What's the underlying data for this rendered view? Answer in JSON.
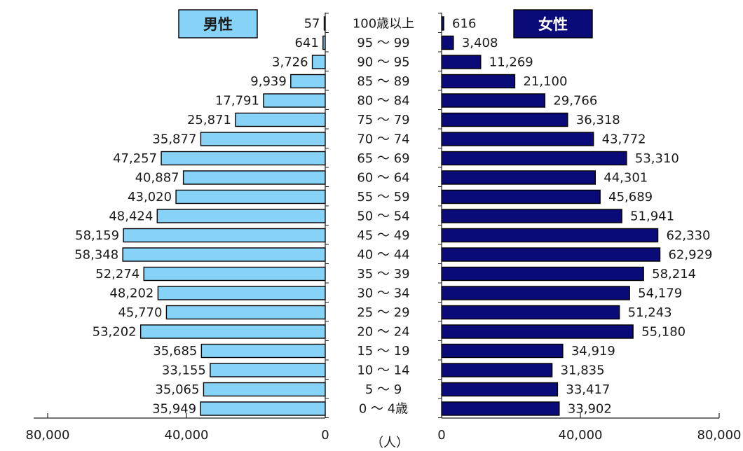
{
  "chart_data": {
    "type": "bar",
    "subtype": "population-pyramid",
    "unit_label": "（人）",
    "categories": [
      "100歳以上",
      "95 ～ 99",
      "90 ～ 95",
      "85 ～ 89",
      "80 ～ 84",
      "75 ～ 79",
      "70 ～ 74",
      "65 ～ 69",
      "60 ～ 64",
      "55 ～ 59",
      "50 ～ 54",
      "45 ～ 49",
      "40 ～ 44",
      "35 ～ 39",
      "30 ～ 34",
      "25 ～ 29",
      "20 ～ 24",
      "15 ～ 19",
      "10 ～ 14",
      "5 ～ 9",
      "0 ～ 4歳"
    ],
    "series": [
      {
        "name": "男性",
        "color": "#87D3F7",
        "values": [
          57,
          641,
          3726,
          9939,
          17791,
          25871,
          35877,
          47257,
          40887,
          43020,
          48424,
          58159,
          58348,
          52274,
          48202,
          45770,
          53202,
          35685,
          33155,
          35065,
          35949
        ],
        "labels": [
          "57",
          "641",
          "3,726",
          "9,939",
          "17,791",
          "25,871",
          "35,877",
          "47,257",
          "40,887",
          "43,020",
          "48,424",
          "58,159",
          "58,348",
          "52,274",
          "48,202",
          "45,770",
          "53,202",
          "35,685",
          "33,155",
          "35,065",
          "35,949"
        ]
      },
      {
        "name": "女性",
        "color": "#0A0A78",
        "values": [
          616,
          3408,
          11269,
          21100,
          29766,
          36318,
          43772,
          53310,
          44301,
          45689,
          51941,
          62330,
          62929,
          58214,
          54179,
          51243,
          55180,
          34919,
          31835,
          33417,
          33902
        ],
        "labels": [
          "616",
          "3,408",
          "11,269",
          "21,100",
          "29,766",
          "36,318",
          "43,772",
          "53,310",
          "44,301",
          "45,689",
          "51,941",
          "62,330",
          "62,929",
          "58,214",
          "54,179",
          "51,243",
          "55,180",
          "34,919",
          "31,835",
          "33,417",
          "33,902"
        ]
      }
    ],
    "x_left_ticks": [
      "80,000",
      "40,000",
      "0"
    ],
    "x_right_ticks": [
      "0",
      "40,000",
      "80,000"
    ],
    "xlim": [
      0,
      80000
    ],
    "legend": {
      "male": "男性",
      "female": "女性"
    },
    "colors": {
      "male_fill": "#87D3F7",
      "female_fill": "#0A0A78",
      "female_legend_text": "#ffffff",
      "male_legend_text": "#1a1a1a"
    }
  }
}
